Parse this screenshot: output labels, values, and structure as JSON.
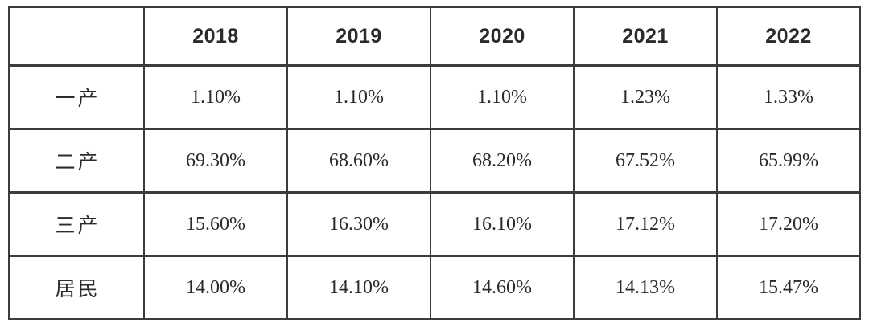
{
  "chart_data": {
    "type": "table",
    "columns": [
      "",
      "2018",
      "2019",
      "2020",
      "2021",
      "2022"
    ],
    "rows": [
      {
        "label": "一产",
        "values": [
          "1.10%",
          "1.10%",
          "1.10%",
          "1.23%",
          "1.33%"
        ]
      },
      {
        "label": "二产",
        "values": [
          "69.30%",
          "68.60%",
          "68.20%",
          "67.52%",
          "65.99%"
        ]
      },
      {
        "label": "三产",
        "values": [
          "15.60%",
          "16.30%",
          "16.10%",
          "17.12%",
          "17.20%"
        ]
      },
      {
        "label": "居民",
        "values": [
          "14.00%",
          "14.10%",
          "14.60%",
          "14.13%",
          "15.47%"
        ]
      }
    ]
  },
  "colors": {
    "border": "#3c3c3c",
    "text": "#2b2b2b",
    "background": "#ffffff"
  }
}
